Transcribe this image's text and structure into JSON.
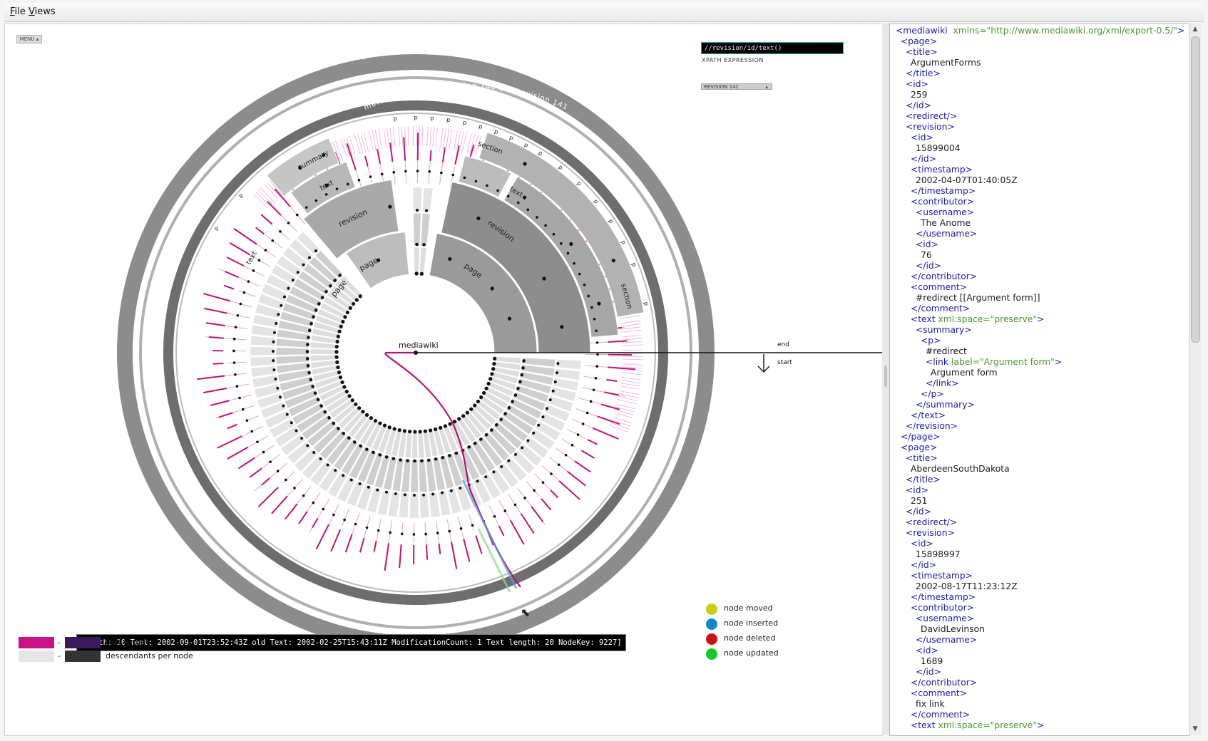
{
  "menubar": {
    "items": [
      "File",
      "Views"
    ]
  },
  "viz": {
    "menu_toggle": "MENU ▴",
    "xpath_value": "//revision/id/text()",
    "xpath_label": "XPATH EXPRESSION",
    "revision_label": "REVISION 141",
    "ring_titles": {
      "outer": "changed nodes in revision 141 from revision 140",
      "inner": "matching nodes in revision 140 and revision 141"
    },
    "root_label": "mediawiki",
    "end_label": "end",
    "start_label": "start",
    "tooltip": "[Depth: 10 Text: 2002-09-01T23:52:43Z old Text: 2002-02-25T15:43:11Z ModificationCount: 1 Text length: 20 NodeKey: 9227]",
    "node_labels": {
      "page_a": "page",
      "page_b": "page",
      "page_c": "page",
      "revision_a": "revision",
      "revision_b": "revision",
      "text_a": "text",
      "text_b": "text",
      "text_c": "text",
      "summary": "summary",
      "section_a": "section",
      "section_b": "section",
      "p_labels": [
        "p",
        "p",
        "p",
        "p",
        "p",
        "p",
        "p",
        "p",
        "p",
        "p",
        "p",
        "p",
        "p",
        "p",
        "p",
        "p",
        "p",
        "p",
        "p"
      ]
    }
  },
  "legend": {
    "text_length": "text length",
    "descendants": "descendants per node",
    "dash": "-",
    "colors": {
      "text_length_low": "#cc1188",
      "text_length_high": "#3a1a5a",
      "descendants_low": "#e6e6e6",
      "descendants_high": "#333333"
    }
  },
  "status_legend": [
    {
      "label": "node moved",
      "color": "#cccc11"
    },
    {
      "label": "node inserted",
      "color": "#1188cc"
    },
    {
      "label": "node deleted",
      "color": "#cc1111"
    },
    {
      "label": "node updated",
      "color": "#11cc22"
    }
  ],
  "xml_lines": [
    {
      "indent": 0,
      "tag": "<mediawiki",
      "attr": "  xmlns=\"http://www.mediawiki.org/xml/export-0.5/\"",
      "close": ">"
    },
    {
      "indent": 1,
      "tag": "<page>"
    },
    {
      "indent": 2,
      "tag": "<title>"
    },
    {
      "indent": 3,
      "text": "ArgumentForms"
    },
    {
      "indent": 2,
      "tag": "</title>"
    },
    {
      "indent": 2,
      "tag": "<id>"
    },
    {
      "indent": 3,
      "text": "259"
    },
    {
      "indent": 2,
      "tag": "</id>"
    },
    {
      "indent": 2,
      "tag": "<redirect/>"
    },
    {
      "indent": 2,
      "tag": "<revision>"
    },
    {
      "indent": 3,
      "tag": "<id>"
    },
    {
      "indent": 4,
      "text": "15899004"
    },
    {
      "indent": 3,
      "tag": "</id>"
    },
    {
      "indent": 3,
      "tag": "<timestamp>"
    },
    {
      "indent": 4,
      "text": "2002-04-07T01:40:05Z"
    },
    {
      "indent": 3,
      "tag": "</timestamp>"
    },
    {
      "indent": 3,
      "tag": "<contributor>"
    },
    {
      "indent": 4,
      "tag": "<username>"
    },
    {
      "indent": 5,
      "text": "The Anome"
    },
    {
      "indent": 4,
      "tag": "</username>"
    },
    {
      "indent": 4,
      "tag": "<id>"
    },
    {
      "indent": 5,
      "text": "76"
    },
    {
      "indent": 4,
      "tag": "</id>"
    },
    {
      "indent": 3,
      "tag": "</contributor>"
    },
    {
      "indent": 3,
      "tag": "<comment>"
    },
    {
      "indent": 4,
      "text": "#redirect [[Argument form]]"
    },
    {
      "indent": 3,
      "tag": "</comment>"
    },
    {
      "indent": 3,
      "tag": "<text",
      "attr": " xml:space=\"preserve\"",
      "close": ">"
    },
    {
      "indent": 4,
      "tag": "<summary>"
    },
    {
      "indent": 5,
      "tag": "<p>"
    },
    {
      "indent": 6,
      "text": "#redirect"
    },
    {
      "indent": 6,
      "tag": "<link",
      "attr": " label=\"Argument form\"",
      "close": ">"
    },
    {
      "indent": 7,
      "text": "Argument form"
    },
    {
      "indent": 6,
      "tag": "</link>"
    },
    {
      "indent": 5,
      "tag": "</p>"
    },
    {
      "indent": 4,
      "tag": "</summary>"
    },
    {
      "indent": 3,
      "tag": "</text>"
    },
    {
      "indent": 2,
      "tag": "</revision>"
    },
    {
      "indent": 1,
      "tag": "</page>"
    },
    {
      "indent": 1,
      "tag": "<page>"
    },
    {
      "indent": 2,
      "tag": "<title>"
    },
    {
      "indent": 3,
      "text": "AberdeenSouthDakota"
    },
    {
      "indent": 2,
      "tag": "</title>"
    },
    {
      "indent": 2,
      "tag": "<id>"
    },
    {
      "indent": 3,
      "text": "251"
    },
    {
      "indent": 2,
      "tag": "</id>"
    },
    {
      "indent": 2,
      "tag": "<redirect/>"
    },
    {
      "indent": 2,
      "tag": "<revision>"
    },
    {
      "indent": 3,
      "tag": "<id>"
    },
    {
      "indent": 4,
      "text": "15898997"
    },
    {
      "indent": 3,
      "tag": "</id>"
    },
    {
      "indent": 3,
      "tag": "<timestamp>"
    },
    {
      "indent": 4,
      "text": "2002-08-17T11:23:12Z"
    },
    {
      "indent": 3,
      "tag": "</timestamp>"
    },
    {
      "indent": 3,
      "tag": "<contributor>"
    },
    {
      "indent": 4,
      "tag": "<username>"
    },
    {
      "indent": 5,
      "text": "DavidLevinson"
    },
    {
      "indent": 4,
      "tag": "</username>"
    },
    {
      "indent": 4,
      "tag": "<id>"
    },
    {
      "indent": 5,
      "text": "1689"
    },
    {
      "indent": 4,
      "tag": "</id>"
    },
    {
      "indent": 3,
      "tag": "</contributor>"
    },
    {
      "indent": 3,
      "tag": "<comment>"
    },
    {
      "indent": 4,
      "text": "fix link"
    },
    {
      "indent": 3,
      "tag": "</comment>"
    },
    {
      "indent": 3,
      "tag": "<text",
      "attr": " xml:space=\"preserve\"",
      "close": ">"
    }
  ],
  "scrollbar": {
    "up": "▲",
    "down": "▼"
  }
}
